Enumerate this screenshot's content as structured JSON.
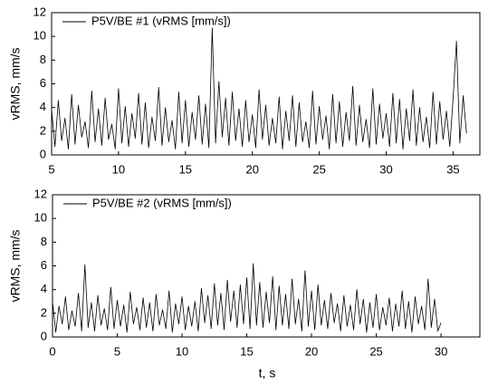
{
  "chart_data": [
    {
      "type": "line",
      "y_label": "vRMS, mm/s",
      "xlim": [
        5,
        37
      ],
      "xticks": [
        5,
        10,
        15,
        20,
        25,
        30,
        35
      ],
      "ylim": [
        0,
        12
      ],
      "yticks": [
        0,
        2,
        4,
        6,
        8,
        10,
        12
      ],
      "legend": "top-left",
      "x": [
        5,
        5.25,
        5.5,
        5.75,
        6,
        6.25,
        6.5,
        6.75,
        7,
        7.25,
        7.5,
        7.75,
        8,
        8.25,
        8.5,
        8.75,
        9,
        9.25,
        9.5,
        9.75,
        10,
        10.25,
        10.5,
        10.75,
        11,
        11.25,
        11.5,
        11.75,
        12,
        12.25,
        12.5,
        12.75,
        13,
        13.25,
        13.5,
        13.75,
        14,
        14.25,
        14.5,
        14.75,
        15,
        15.25,
        15.5,
        15.75,
        16,
        16.25,
        16.5,
        16.75,
        17,
        17.25,
        17.5,
        17.75,
        18,
        18.25,
        18.5,
        18.75,
        19,
        19.25,
        19.5,
        19.75,
        20,
        20.25,
        20.5,
        20.75,
        21,
        21.25,
        21.5,
        21.75,
        22,
        22.25,
        22.5,
        22.75,
        23,
        23.25,
        23.5,
        23.75,
        24,
        24.25,
        24.5,
        24.75,
        25,
        25.25,
        25.5,
        25.75,
        26,
        26.25,
        26.5,
        26.75,
        27,
        27.25,
        27.5,
        27.75,
        28,
        28.25,
        28.5,
        28.75,
        29,
        29.25,
        29.5,
        29.75,
        30,
        30.25,
        30.5,
        30.75,
        31,
        31.25,
        31.5,
        31.75,
        32,
        32.25,
        32.5,
        32.75,
        33,
        33.25,
        33.5,
        33.75,
        34,
        34.25,
        34.5,
        34.75,
        35,
        35.25,
        35.5,
        35.75,
        36
      ],
      "series": [
        {
          "name": "P5V/BE #1 (vRMS [mm/s])",
          "color": "#000000",
          "values": [
            3.8,
            0.7,
            4.6,
            1.2,
            3.1,
            0.5,
            5.1,
            0.9,
            4.2,
            1.5,
            2.8,
            0.6,
            5.4,
            1.1,
            3.9,
            0.8,
            4.8,
            1.3,
            2.6,
            0.5,
            5.6,
            1.0,
            4.1,
            0.7,
            3.5,
            1.4,
            5.2,
            0.9,
            4.4,
            0.6,
            3.2,
            1.2,
            5.7,
            0.8,
            4.0,
            1.1,
            2.9,
            0.5,
            5.3,
            1.0,
            4.6,
            0.7,
            3.6,
            1.3,
            5.0,
            0.9,
            4.3,
            0.6,
            10.7,
            1.0,
            6.2,
            1.5,
            4.8,
            0.8,
            5.3,
            1.2,
            3.9,
            0.7,
            4.6,
            1.1,
            3.4,
            0.6,
            5.5,
            1.3,
            4.2,
            0.8,
            3.1,
            1.0,
            4.9,
            0.5,
            3.7,
            1.2,
            5.0,
            0.7,
            4.4,
            1.1,
            2.8,
            0.6,
            5.4,
            0.9,
            4.1,
            1.3,
            3.3,
            0.5,
            5.1,
            1.0,
            4.5,
            0.7,
            3.6,
            1.2,
            5.8,
            0.8,
            4.2,
            1.1,
            3.0,
            0.6,
            5.6,
            0.9,
            4.3,
            1.4,
            3.5,
            0.7,
            5.2,
            1.0,
            4.7,
            0.5,
            3.9,
            1.2,
            5.5,
            0.8,
            4.0,
            1.1,
            3.2,
            0.6,
            5.3,
            0.9,
            4.5,
            1.3,
            3.7,
            0.7,
            4.8,
            9.6,
            1.0,
            5.0,
            1.8
          ]
        }
      ]
    },
    {
      "type": "line",
      "x_label": "t, s",
      "y_label": "vRMS, mm/s",
      "xlim": [
        0,
        33
      ],
      "xticks": [
        0,
        5,
        10,
        15,
        20,
        25,
        30
      ],
      "ylim": [
        0,
        12
      ],
      "yticks": [
        0,
        2,
        4,
        6,
        8,
        10,
        12
      ],
      "legend": "top-left",
      "x": [
        0,
        0.25,
        0.5,
        0.75,
        1,
        1.25,
        1.5,
        1.75,
        2,
        2.25,
        2.5,
        2.75,
        3,
        3.25,
        3.5,
        3.75,
        4,
        4.25,
        4.5,
        4.75,
        5,
        5.25,
        5.5,
        5.75,
        6,
        6.25,
        6.5,
        6.75,
        7,
        7.25,
        7.5,
        7.75,
        8,
        8.25,
        8.5,
        8.75,
        9,
        9.25,
        9.5,
        9.75,
        10,
        10.25,
        10.5,
        10.75,
        11,
        11.25,
        11.5,
        11.75,
        12,
        12.25,
        12.5,
        12.75,
        13,
        13.25,
        13.5,
        13.75,
        14,
        14.25,
        14.5,
        14.75,
        15,
        15.25,
        15.5,
        15.75,
        16,
        16.25,
        16.5,
        16.75,
        17,
        17.25,
        17.5,
        17.75,
        18,
        18.25,
        18.5,
        18.75,
        19,
        19.25,
        19.5,
        19.75,
        20,
        20.25,
        20.5,
        20.75,
        21,
        21.25,
        21.5,
        21.75,
        22,
        22.25,
        22.5,
        22.75,
        23,
        23.25,
        23.5,
        23.75,
        24,
        24.25,
        24.5,
        24.75,
        25,
        25.25,
        25.5,
        25.75,
        26,
        26.25,
        26.5,
        26.75,
        27,
        27.25,
        27.5,
        27.75,
        28,
        28.25,
        28.5,
        28.75,
        29,
        29.25,
        29.5,
        29.75,
        30
      ],
      "series": [
        {
          "name": "P5V/BE #2 (vRMS [mm/s])",
          "color": "#000000",
          "values": [
            3.0,
            0.4,
            2.6,
            1.1,
            3.4,
            0.6,
            2.2,
            0.9,
            3.7,
            0.5,
            6.1,
            0.8,
            2.9,
            0.5,
            3.5,
            1.0,
            2.4,
            0.6,
            4.2,
            0.7,
            3.1,
            0.9,
            2.7,
            0.4,
            3.8,
            1.1,
            2.5,
            0.6,
            3.3,
            0.8,
            2.9,
            0.5,
            3.6,
            1.0,
            2.3,
            0.7,
            3.9,
            0.4,
            2.8,
            1.1,
            3.4,
            0.6,
            2.6,
            0.9,
            3.0,
            0.5,
            4.1,
            1.2,
            3.5,
            0.7,
            4.5,
            1.0,
            3.7,
            0.6,
            4.8,
            1.3,
            3.9,
            0.8,
            4.4,
            1.1,
            5.0,
            0.7,
            6.2,
            1.0,
            4.6,
            0.8,
            3.8,
            1.2,
            5.1,
            0.6,
            4.3,
            1.0,
            3.6,
            0.7,
            4.9,
            1.1,
            3.2,
            0.5,
            5.6,
            0.9,
            3.9,
            0.6,
            4.4,
            1.0,
            3.1,
            0.7,
            3.7,
            1.2,
            2.8,
            0.5,
            3.5,
            0.9,
            2.7,
            0.6,
            4.0,
            1.1,
            3.2,
            0.4,
            2.9,
            0.8,
            3.6,
            0.6,
            2.5,
            1.0,
            3.3,
            0.5,
            2.8,
            0.9,
            3.9,
            0.7,
            3.0,
            0.4,
            3.4,
            1.1,
            2.6,
            0.6,
            4.9,
            0.8,
            3.2,
            0.5,
            1.2
          ]
        }
      ]
    }
  ]
}
